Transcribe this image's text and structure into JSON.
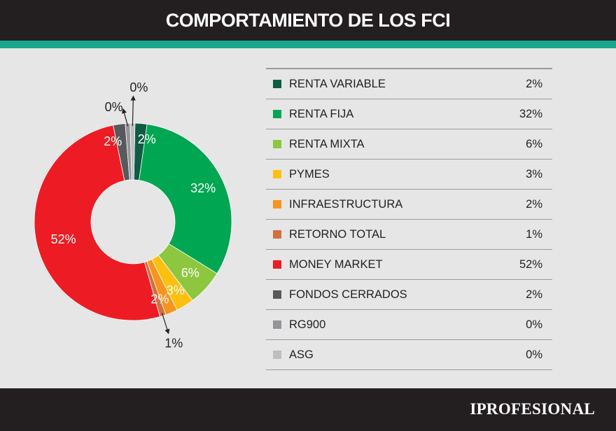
{
  "header": {
    "title": "COMPORTAMIENTO DE LOS FCI"
  },
  "footer": {
    "brand": "IPROFESIONAL"
  },
  "colors": {
    "header_bg": "#231f20",
    "accent": "#1aa68e",
    "background": "#e6e6e6"
  },
  "chart_data": {
    "type": "pie",
    "variant": "donut",
    "title": "COMPORTAMIENTO DE LOS FCI",
    "slices": [
      {
        "key": "renta-variable",
        "label": "RENTA VARIABLE",
        "value": 2,
        "display": "2%",
        "color": "#0f5b44"
      },
      {
        "key": "renta-fija",
        "label": "RENTA FIJA",
        "value": 32,
        "display": "32%",
        "color": "#00a651"
      },
      {
        "key": "renta-mixta",
        "label": "RENTA MIXTA",
        "value": 6,
        "display": "6%",
        "color": "#8dc63f"
      },
      {
        "key": "pymes",
        "label": "PYMES",
        "value": 3,
        "display": "3%",
        "color": "#fdc010"
      },
      {
        "key": "infraestructura",
        "label": "INFRAESTRUCTURA",
        "value": 2,
        "display": "2%",
        "color": "#f7941d"
      },
      {
        "key": "retorno-total",
        "label": "RETORNO TOTAL",
        "value": 1,
        "display": "1%",
        "color": "#d2713e"
      },
      {
        "key": "money-market",
        "label": "MONEY MARKET",
        "value": 52,
        "display": "52%",
        "color": "#ed1c24"
      },
      {
        "key": "fondos-cerrados",
        "label": "FONDOS CERRADOS",
        "value": 2,
        "display": "2%",
        "color": "#58595b"
      },
      {
        "key": "rg900",
        "label": "RG900",
        "value": 0,
        "display": "0%",
        "color": "#939598"
      },
      {
        "key": "asg",
        "label": "ASG",
        "value": 0,
        "display": "0%",
        "color": "#bcbec0"
      }
    ],
    "legend_position": "right"
  }
}
